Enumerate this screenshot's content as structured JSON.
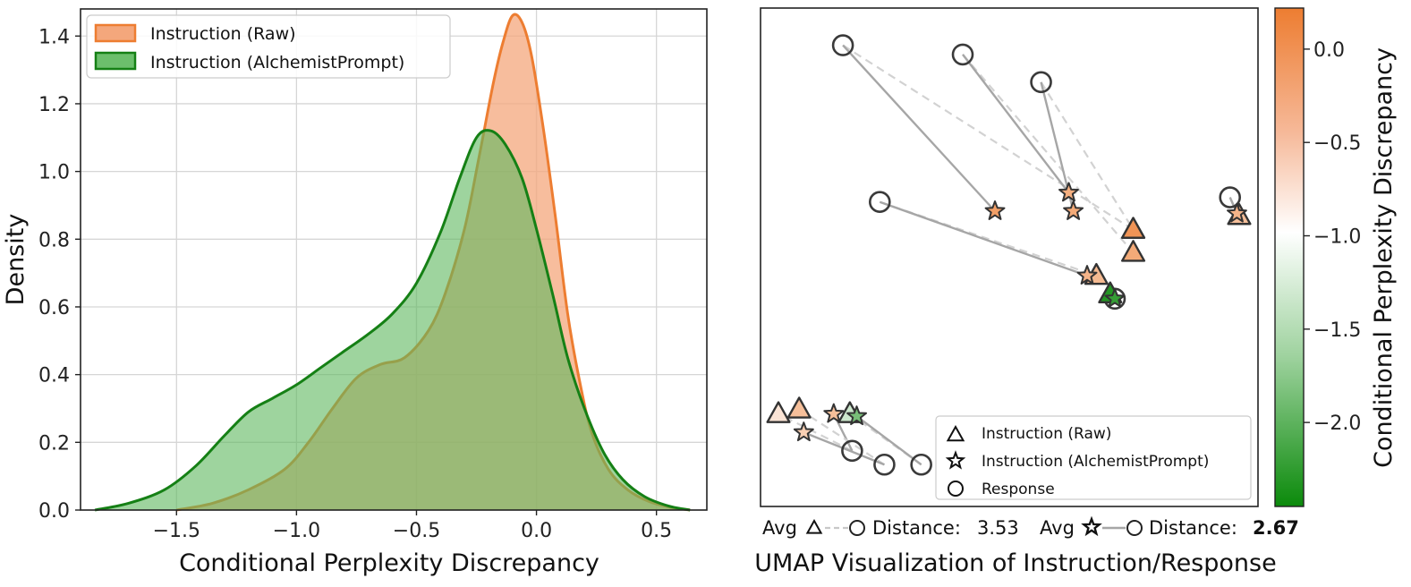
{
  "chart_data": [
    {
      "type": "area",
      "xlabel": "Conditional Perplexity Discrepancy",
      "ylabel": "Density",
      "xlim": [
        -1.9,
        0.71
      ],
      "ylim": [
        0,
        1.48
      ],
      "xticks": [
        -1.5,
        -1.0,
        -0.5,
        0.0,
        0.5
      ],
      "xtick_labels": [
        "−1.5",
        "−1.0",
        "−0.5",
        "0.0",
        "0.5"
      ],
      "yticks": [
        0.0,
        0.2,
        0.4,
        0.6,
        0.8,
        1.0,
        1.2,
        1.4
      ],
      "ytick_labels": [
        "0.0",
        "0.2",
        "0.4",
        "0.6",
        "0.8",
        "1.0",
        "1.2",
        "1.4"
      ],
      "grid": true,
      "legend_position": "top-left",
      "series": [
        {
          "name": "Instruction (Raw)",
          "color": "#ed7d31",
          "fill": "#f4a77c",
          "points": [
            [
              -1.5,
              0.0
            ],
            [
              -1.35,
              0.02
            ],
            [
              -1.2,
              0.06
            ],
            [
              -1.05,
              0.12
            ],
            [
              -0.95,
              0.2
            ],
            [
              -0.85,
              0.3
            ],
            [
              -0.75,
              0.39
            ],
            [
              -0.65,
              0.43
            ],
            [
              -0.55,
              0.45
            ],
            [
              -0.45,
              0.53
            ],
            [
              -0.38,
              0.64
            ],
            [
              -0.3,
              0.83
            ],
            [
              -0.24,
              1.04
            ],
            [
              -0.18,
              1.26
            ],
            [
              -0.14,
              1.38
            ],
            [
              -0.1,
              1.46
            ],
            [
              -0.06,
              1.44
            ],
            [
              -0.02,
              1.34
            ],
            [
              0.03,
              1.12
            ],
            [
              0.08,
              0.86
            ],
            [
              0.13,
              0.58
            ],
            [
              0.18,
              0.38
            ],
            [
              0.23,
              0.23
            ],
            [
              0.3,
              0.12
            ],
            [
              0.38,
              0.06
            ],
            [
              0.47,
              0.025
            ],
            [
              0.56,
              0.008
            ],
            [
              0.64,
              0.0
            ]
          ]
        },
        {
          "name": "Instruction (AlchemistPrompt)",
          "color": "#158015",
          "fill": "#5db85d",
          "points": [
            [
              -1.84,
              0.0
            ],
            [
              -1.7,
              0.02
            ],
            [
              -1.55,
              0.06
            ],
            [
              -1.42,
              0.13
            ],
            [
              -1.3,
              0.22
            ],
            [
              -1.2,
              0.29
            ],
            [
              -1.1,
              0.33
            ],
            [
              -1.0,
              0.37
            ],
            [
              -0.9,
              0.42
            ],
            [
              -0.8,
              0.47
            ],
            [
              -0.7,
              0.52
            ],
            [
              -0.6,
              0.58
            ],
            [
              -0.5,
              0.67
            ],
            [
              -0.4,
              0.82
            ],
            [
              -0.32,
              0.98
            ],
            [
              -0.25,
              1.1
            ],
            [
              -0.19,
              1.12
            ],
            [
              -0.13,
              1.08
            ],
            [
              -0.06,
              0.98
            ],
            [
              0.0,
              0.83
            ],
            [
              0.07,
              0.63
            ],
            [
              0.13,
              0.45
            ],
            [
              0.2,
              0.3
            ],
            [
              0.28,
              0.17
            ],
            [
              0.36,
              0.09
            ],
            [
              0.45,
              0.04
            ],
            [
              0.55,
              0.012
            ],
            [
              0.64,
              0.0
            ]
          ]
        }
      ]
    },
    {
      "type": "scatter",
      "xlabel": "UMAP Visualization of Instruction/Response",
      "colorbar_label": "Conditional Perplexity Discrepancy",
      "colorbar_range": [
        -2.45,
        0.22
      ],
      "colorbar_ticks": [
        0.0,
        -0.5,
        -1.0,
        -1.5,
        -2.0
      ],
      "colorbar_tick_labels": [
        "0.0",
        "−0.5",
        "−1.0",
        "−1.5",
        "−2.0"
      ],
      "colorbar_colors": [
        "#ed7d31",
        "#ffffff",
        "#0b8a0b"
      ],
      "xlim": [
        0,
        10
      ],
      "ylim": [
        0,
        10
      ],
      "legend_position": "bottom-right",
      "legend": [
        {
          "marker": "triangle",
          "label": "Instruction (Raw)"
        },
        {
          "marker": "star",
          "label": "Instruction (AlchemistPrompt)"
        },
        {
          "marker": "circle",
          "label": "Response"
        }
      ],
      "groups": [
        {
          "response": [
            1.4,
            9.6
          ],
          "raw": [
            7.7,
            5.6
          ],
          "alch": [
            4.7,
            6.0
          ],
          "raw_v": 0.0,
          "alch_v": -0.1
        },
        {
          "response": [
            4.0,
            9.4
          ],
          "raw": [
            7.7,
            5.1
          ],
          "alch": [
            6.3,
            6.4
          ],
          "raw_v": -0.2,
          "alch_v": -0.25
        },
        {
          "response": [
            5.7,
            8.8
          ],
          "raw": [
            7.7,
            5.6
          ],
          "alch": [
            6.4,
            6.0
          ],
          "raw_v": 0.0,
          "alch_v": -0.2
        },
        {
          "response": [
            2.2,
            6.2
          ],
          "raw": [
            6.9,
            4.6
          ],
          "alch": [
            6.7,
            4.6
          ],
          "raw_v": -0.35,
          "alch_v": -0.3
        },
        {
          "response": [
            7.3,
            4.1
          ],
          "raw": [
            7.2,
            4.2
          ],
          "alch": [
            7.3,
            4.1
          ],
          "raw_v": -2.3,
          "alch_v": -2.2
        },
        {
          "response": [
            9.8,
            6.3
          ],
          "raw": [
            10.0,
            5.9
          ],
          "alch": [
            9.95,
            5.95
          ],
          "raw_v": -0.4,
          "alch_v": -0.3
        },
        {
          "response": [
            1.6,
            0.8
          ],
          "raw": [
            0.0,
            1.6
          ],
          "alch": [
            1.2,
            1.6
          ],
          "raw_v": -0.75,
          "alch_v": -0.4
        },
        {
          "response": [
            2.3,
            0.5
          ],
          "raw": [
            0.45,
            1.7
          ],
          "alch": [
            0.55,
            1.2
          ],
          "raw_v": -0.4,
          "alch_v": -0.55
        },
        {
          "response": [
            3.1,
            0.5
          ],
          "raw": [
            1.55,
            1.6
          ],
          "alch": [
            1.7,
            1.55
          ],
          "raw_v": -1.3,
          "alch_v": -1.8
        }
      ],
      "caption": {
        "avg_label": "Avg",
        "distance_label": "Distance:",
        "raw_distance": "3.53",
        "alch_distance": "2.67"
      }
    }
  ],
  "legend": {
    "raw_label": "Instruction (Raw)",
    "alch_label": "Instruction (AlchemistPrompt)"
  }
}
